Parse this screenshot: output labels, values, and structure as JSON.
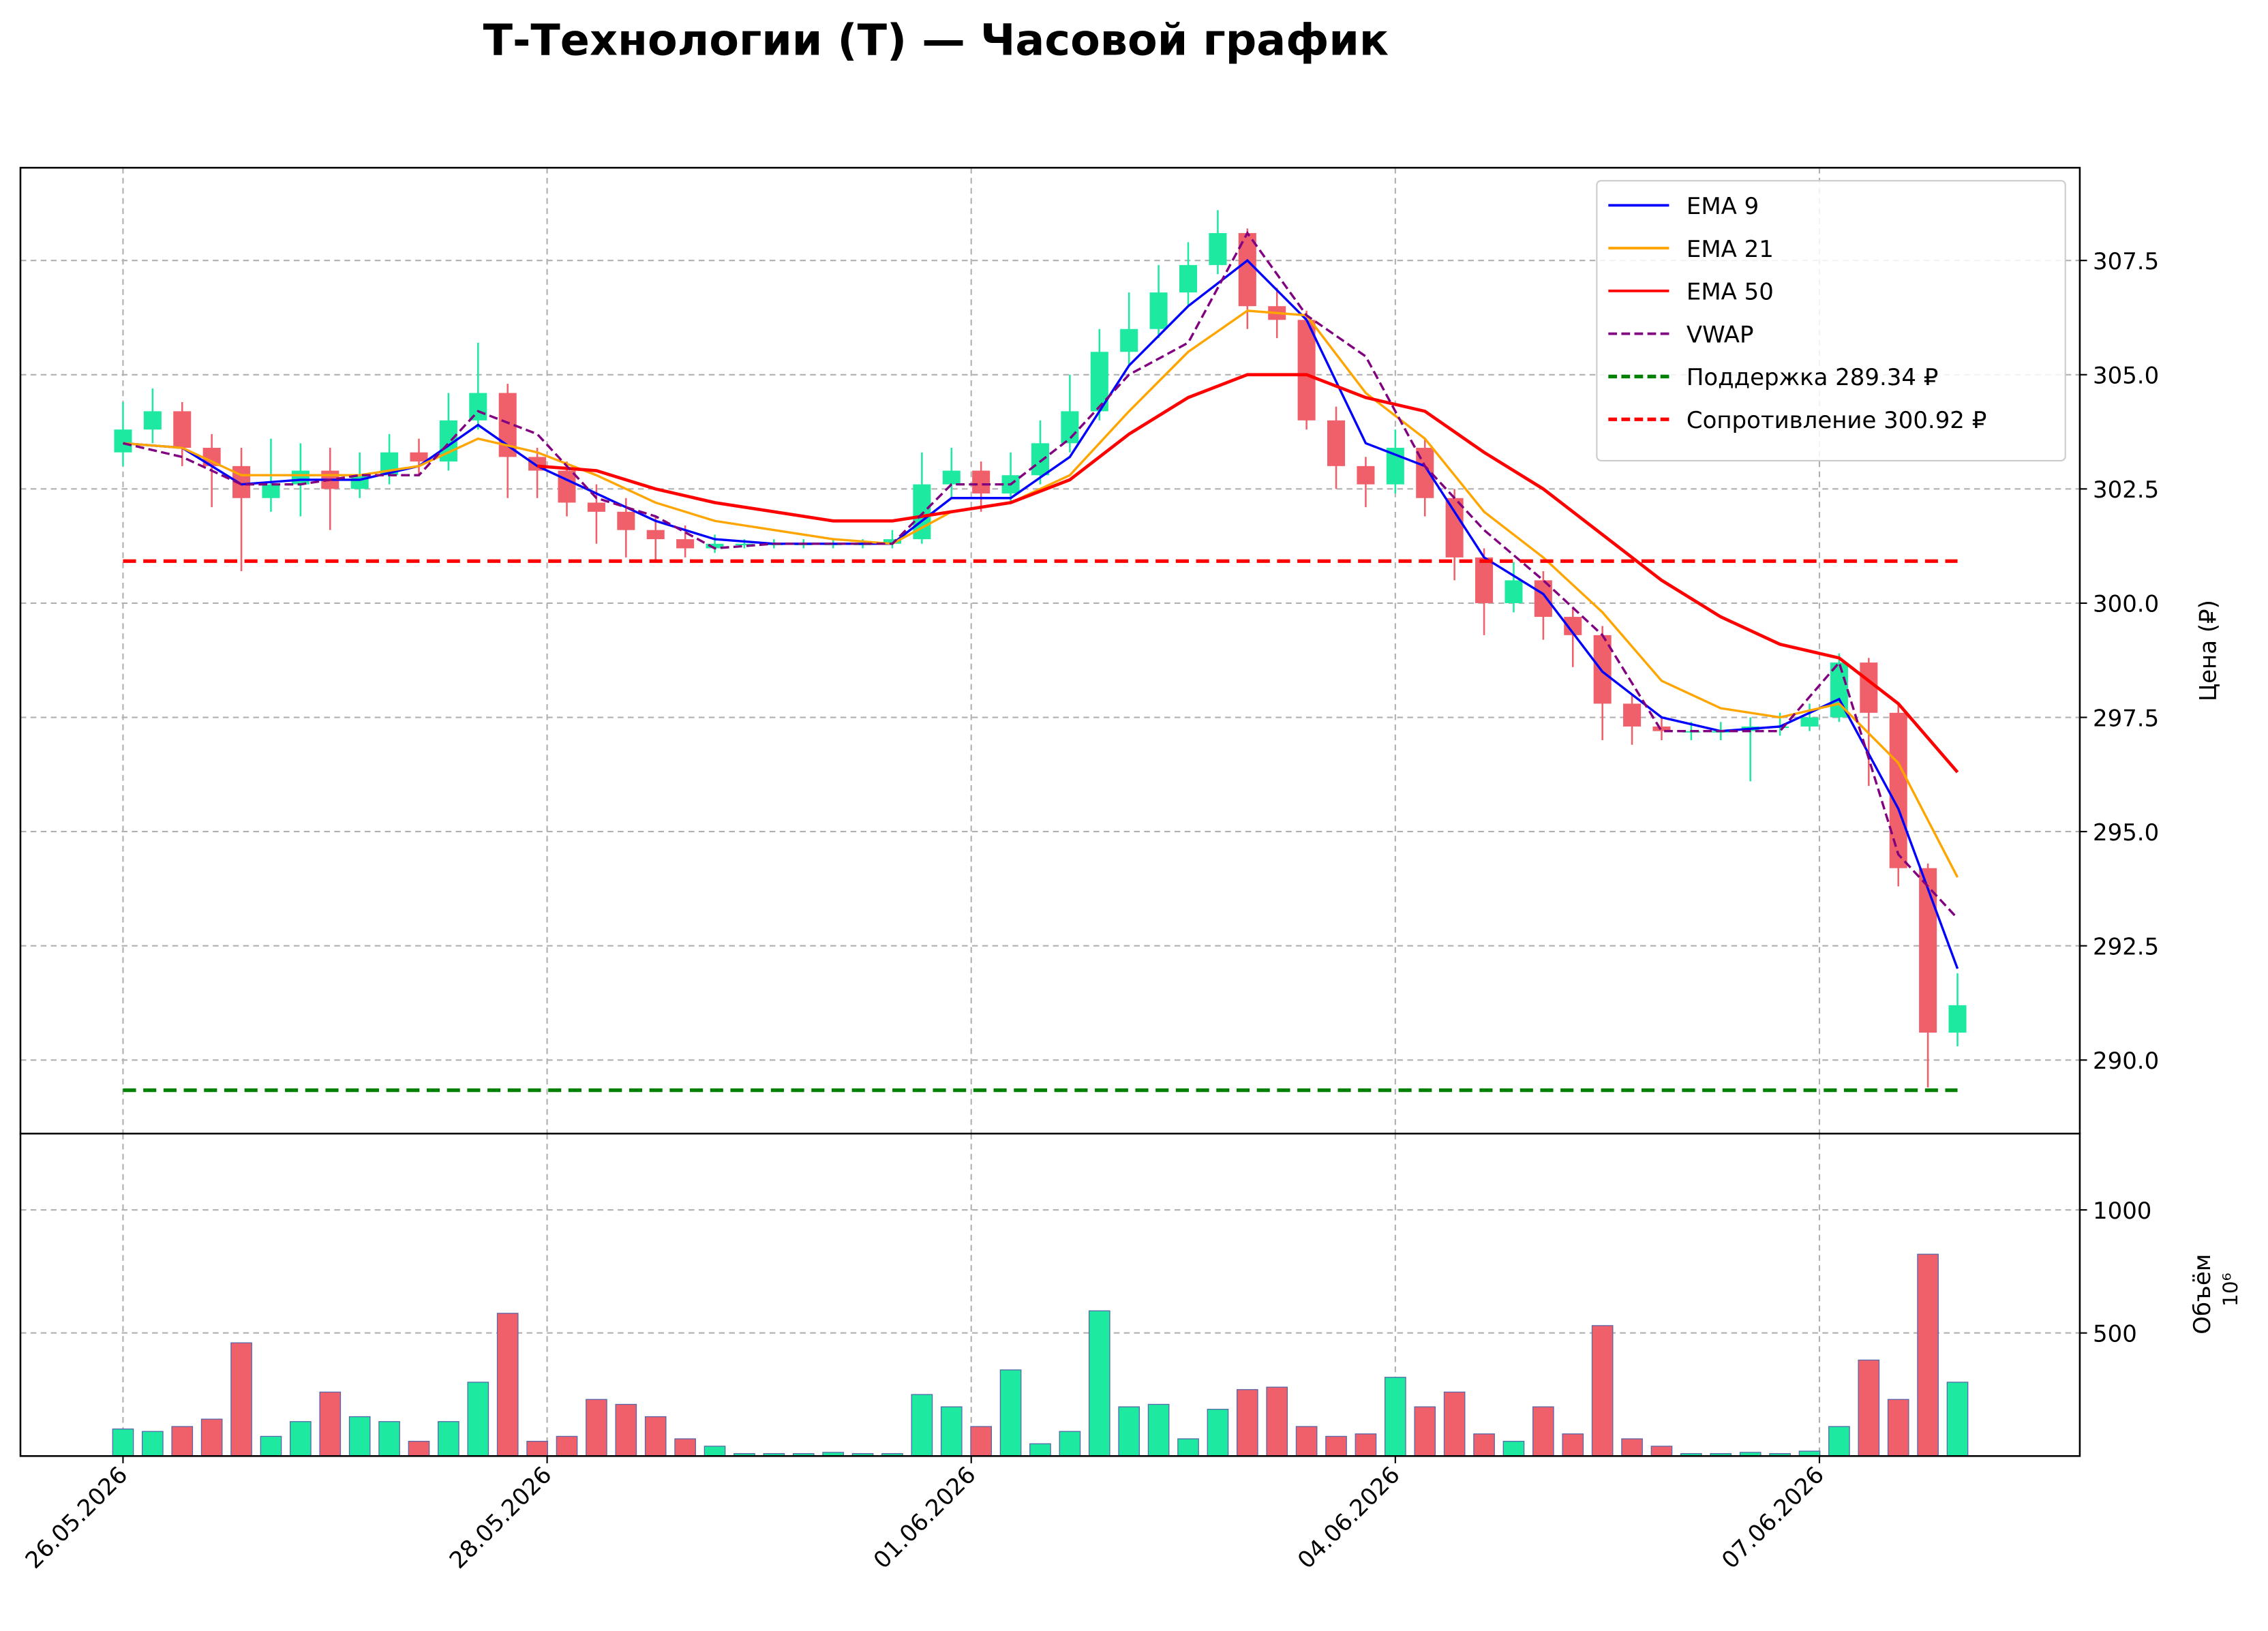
{
  "chart_data": {
    "type": "candlestick",
    "title": "Т-Технологии (T) — Часовой график",
    "x": [
      0,
      3,
      6,
      9,
      12,
      15,
      18,
      21,
      24,
      27,
      30,
      33,
      36,
      39,
      42,
      45,
      48,
      51,
      54,
      57,
      60,
      63,
      66,
      69,
      72,
      75,
      78,
      81,
      84,
      87,
      90,
      93,
      96,
      99,
      102,
      105,
      108,
      111,
      114,
      117,
      120,
      123,
      126,
      129,
      132,
      135,
      138,
      141,
      144,
      147,
      150,
      153,
      156,
      159,
      162,
      165,
      168,
      171,
      174,
      177,
      180,
      183,
      186
    ],
    "open": [
      303.3,
      303.8,
      304.2,
      303.4,
      303.0,
      302.3,
      302.6,
      302.9,
      302.5,
      302.8,
      303.3,
      303.1,
      304.0,
      304.6,
      303.2,
      302.9,
      302.2,
      302.0,
      301.6,
      301.4,
      301.2,
      301.3,
      301.3,
      301.3,
      301.3,
      301.3,
      301.3,
      301.4,
      302.6,
      302.9,
      302.4,
      302.8,
      303.5,
      304.2,
      305.5,
      306.0,
      306.8,
      307.4,
      308.1,
      306.5,
      306.2,
      304.0,
      303.0,
      302.6,
      303.4,
      302.3,
      301.0,
      300.0,
      300.5,
      299.7,
      299.3,
      297.8,
      297.3,
      297.2,
      297.2,
      297.2,
      297.3,
      297.3,
      297.5,
      298.7,
      297.6,
      294.2,
      290.6
    ],
    "high": [
      304.4,
      304.7,
      304.4,
      303.7,
      303.4,
      303.6,
      303.5,
      303.4,
      303.3,
      303.7,
      303.6,
      304.6,
      305.7,
      304.8,
      303.4,
      303.1,
      302.6,
      302.3,
      301.9,
      301.7,
      301.5,
      301.4,
      301.4,
      301.4,
      301.4,
      301.4,
      301.6,
      303.3,
      303.4,
      303.1,
      303.3,
      304.0,
      305.0,
      306.0,
      306.8,
      307.4,
      307.9,
      308.6,
      308.2,
      306.9,
      306.4,
      304.3,
      303.2,
      303.8,
      303.6,
      302.5,
      301.2,
      300.9,
      300.7,
      299.9,
      299.5,
      298.0,
      297.5,
      297.4,
      297.4,
      297.5,
      297.6,
      297.8,
      298.9,
      298.8,
      297.8,
      294.3,
      291.9
    ],
    "low": [
      303.0,
      303.5,
      303.0,
      302.1,
      300.7,
      302.0,
      301.9,
      301.6,
      302.3,
      302.6,
      302.8,
      302.9,
      303.8,
      302.3,
      302.3,
      301.9,
      301.3,
      301.0,
      300.9,
      301.0,
      301.1,
      301.2,
      301.2,
      301.2,
      301.2,
      301.2,
      301.2,
      301.3,
      302.3,
      302.0,
      302.2,
      302.6,
      303.3,
      304.0,
      305.2,
      305.8,
      306.5,
      307.2,
      306.0,
      305.8,
      303.8,
      302.5,
      302.1,
      302.4,
      301.9,
      300.5,
      299.3,
      299.8,
      299.2,
      298.6,
      297.0,
      296.9,
      297.0,
      297.0,
      297.0,
      296.1,
      297.1,
      297.2,
      297.4,
      296.0,
      293.8,
      289.4,
      290.3
    ],
    "close": [
      303.8,
      304.2,
      303.4,
      303.0,
      302.3,
      302.6,
      302.9,
      302.5,
      302.8,
      303.3,
      303.1,
      304.0,
      304.6,
      303.2,
      302.9,
      302.2,
      302.0,
      301.6,
      301.4,
      301.2,
      301.3,
      301.3,
      301.3,
      301.3,
      301.3,
      301.3,
      301.4,
      302.6,
      302.9,
      302.4,
      302.8,
      303.5,
      304.2,
      305.5,
      306.0,
      306.8,
      307.4,
      308.1,
      306.5,
      306.2,
      304.0,
      303.0,
      302.6,
      303.4,
      302.3,
      301.0,
      300.0,
      300.5,
      299.7,
      299.3,
      297.8,
      297.3,
      297.2,
      297.2,
      297.2,
      297.3,
      297.3,
      297.5,
      298.7,
      297.6,
      294.2,
      290.6,
      291.2
    ],
    "volume": [
      110,
      100,
      120,
      150,
      460,
      80,
      140,
      260,
      160,
      140,
      60,
      140,
      300,
      580,
      60,
      80,
      230,
      210,
      160,
      70,
      40,
      10,
      10,
      10,
      15,
      10,
      10,
      250,
      200,
      120,
      350,
      50,
      100,
      590,
      200,
      210,
      70,
      190,
      270,
      280,
      120,
      80,
      90,
      320,
      200,
      260,
      90,
      60,
      200,
      90,
      530,
      70,
      40,
      10,
      10,
      15,
      10,
      20,
      120,
      390,
      230,
      820,
      300
    ],
    "up_color": "#1de9a0",
    "down_color": "#f0606a",
    "line_x": [
      0,
      6,
      12,
      18,
      24,
      30,
      36,
      42,
      48,
      54,
      60,
      66,
      72,
      78,
      84,
      90,
      96,
      102,
      108,
      114,
      120,
      126,
      132,
      138,
      144,
      150,
      156,
      162,
      168,
      174,
      180,
      186
    ],
    "lines": [
      {
        "name": "EMA 9",
        "color": "#0000ff",
        "dashed": false,
        "values": [
          303.5,
          303.4,
          302.6,
          302.7,
          302.7,
          303.0,
          303.9,
          303.0,
          302.4,
          301.8,
          301.4,
          301.3,
          301.3,
          301.3,
          302.3,
          302.3,
          303.2,
          305.2,
          306.5,
          307.5,
          306.2,
          303.5,
          303.0,
          301.0,
          300.2,
          298.5,
          297.5,
          297.2,
          297.3,
          297.9,
          295.5,
          292.0
        ]
      },
      {
        "name": "EMA 21",
        "color": "#ffa500",
        "dashed": false,
        "values": [
          303.5,
          303.4,
          302.8,
          302.8,
          302.8,
          303.0,
          303.6,
          303.3,
          302.8,
          302.2,
          301.8,
          301.6,
          301.4,
          301.3,
          302.0,
          302.2,
          302.8,
          304.2,
          305.5,
          306.4,
          306.3,
          304.6,
          303.6,
          302.0,
          301.0,
          299.8,
          298.3,
          297.7,
          297.5,
          297.8,
          296.5,
          294.0
        ]
      },
      {
        "name": "EMA 50",
        "color": "#ff0000",
        "dashed": false,
        "values": [
          null,
          null,
          null,
          null,
          null,
          null,
          null,
          303.0,
          302.9,
          302.5,
          302.2,
          302.0,
          301.8,
          301.8,
          302.0,
          302.2,
          302.7,
          303.7,
          304.5,
          305.0,
          305.0,
          304.5,
          304.2,
          303.3,
          302.5,
          301.5,
          300.5,
          299.7,
          299.1,
          298.8,
          297.8,
          296.3
        ]
      },
      {
        "name": "VWAP",
        "color": "#800080",
        "dashed": true,
        "values": [
          303.5,
          303.2,
          302.6,
          302.6,
          302.8,
          302.8,
          304.2,
          303.7,
          302.3,
          301.9,
          301.2,
          301.3,
          301.3,
          301.3,
          302.6,
          302.6,
          303.6,
          305.0,
          305.7,
          308.1,
          306.3,
          305.4,
          303.0,
          301.6,
          300.5,
          299.3,
          297.2,
          297.2,
          297.2,
          298.7,
          294.5,
          293.1
        ]
      }
    ],
    "hlines": [
      {
        "name": "Поддержка 289.34 ₽",
        "color": "#008000",
        "value": 289.34
      },
      {
        "name": "Сопротивление 300.92 ₽",
        "color": "#ff0000",
        "value": 300.92
      }
    ],
    "xlim": [
      -10.4,
      198.4
    ],
    "xticks": [
      {
        "value": 0,
        "label": "26.05.2026"
      },
      {
        "value": 43,
        "label": "28.05.2026"
      },
      {
        "value": 86,
        "label": "01.06.2026"
      },
      {
        "value": 129,
        "label": "04.06.2026"
      },
      {
        "value": 172,
        "label": "07.06.2026"
      }
    ],
    "ylim": [
      288.39,
      309.53
    ],
    "yticks": [
      {
        "value": 290,
        "label": "290.0"
      },
      292.5,
      {
        "value": 295,
        "label": "295.0"
      },
      297.5,
      {
        "value": 300,
        "label": "300.0"
      },
      302.5,
      {
        "value": 305,
        "label": "305.0"
      },
      307.5
    ],
    "ylabel": "Цена (₽)",
    "volume_ylim": [
      0,
      1310
    ],
    "volume_yticks": [
      500,
      1000
    ],
    "volume_label": "Объём",
    "volume_multiplier": "10⁶",
    "grid": true,
    "legend": "upper right"
  }
}
